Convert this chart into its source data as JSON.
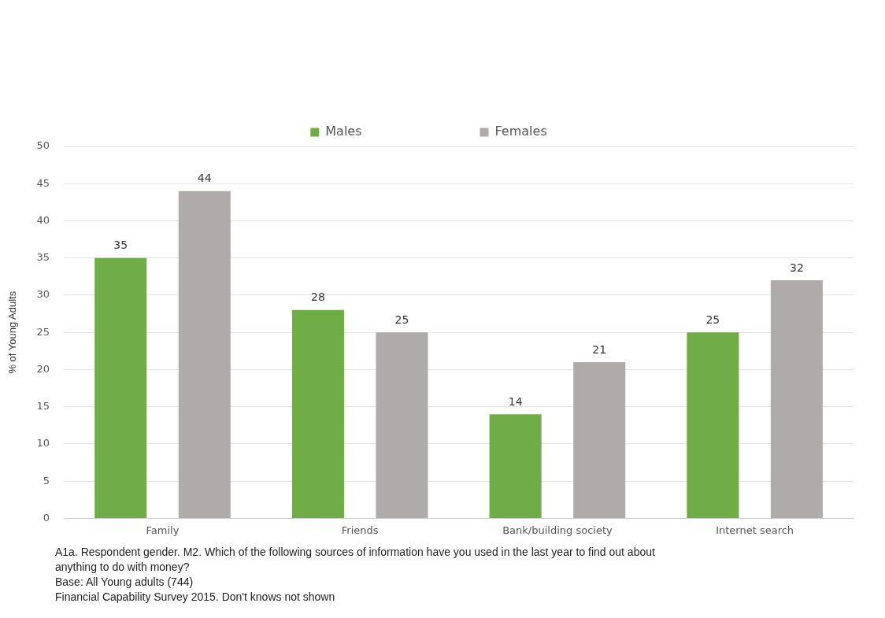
{
  "chart_data": {
    "type": "bar",
    "ylabel": "% of Young Adults",
    "categories": [
      "Family",
      "Friends",
      "Bank/building society",
      "Internet search"
    ],
    "series": [
      {
        "name": "Males",
        "color": "#70ad47",
        "values": [
          35,
          28,
          14,
          25
        ]
      },
      {
        "name": "Females",
        "color": "#afabab",
        "values": [
          44,
          25,
          21,
          32
        ]
      }
    ],
    "ylim": [
      0,
      50
    ],
    "yticks": [
      0,
      5,
      10,
      15,
      20,
      25,
      30,
      35,
      40,
      45,
      50
    ],
    "grid": "y",
    "legend": "top",
    "data_labels": true,
    "annotations": [
      "A1a. Respondent gender. M2. Which of the following sources of information have you used in the last year to find out about anything to do with money?",
      "Base: All Young adults (744)",
      "Financial Capability Survey 2015. Don't knows not shown"
    ]
  }
}
